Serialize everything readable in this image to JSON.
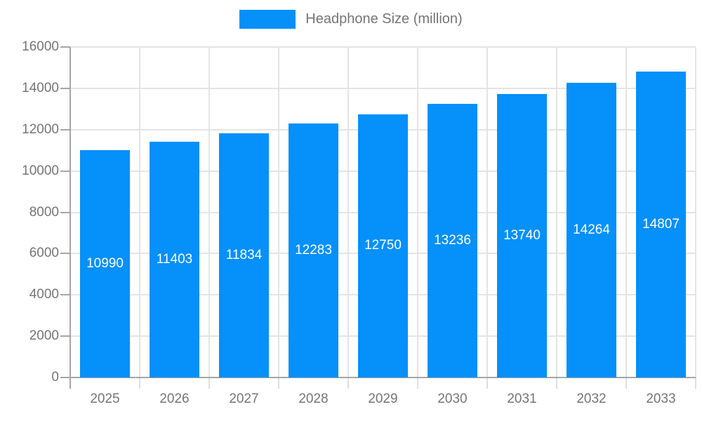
{
  "legend": {
    "label": "Headphone Size (million)"
  },
  "chart_data": {
    "type": "bar",
    "title": "",
    "xlabel": "",
    "ylabel": "",
    "categories": [
      "2025",
      "2026",
      "2027",
      "2028",
      "2029",
      "2030",
      "2031",
      "2032",
      "2033"
    ],
    "series": [
      {
        "name": "Headphone Size (million)",
        "values": [
          10990,
          11403,
          11834,
          12283,
          12750,
          13236,
          13740,
          14264,
          14807
        ]
      }
    ],
    "ylim": [
      0,
      16000
    ],
    "ytick_step": 2000,
    "grid": true,
    "legend_position": "top",
    "bar_color": "#0590fa",
    "value_label_color": "#ffffff",
    "axis_text_color": "#757575",
    "grid_color": "#e4e4e4",
    "axis_line_color": "#a6a6a6"
  }
}
